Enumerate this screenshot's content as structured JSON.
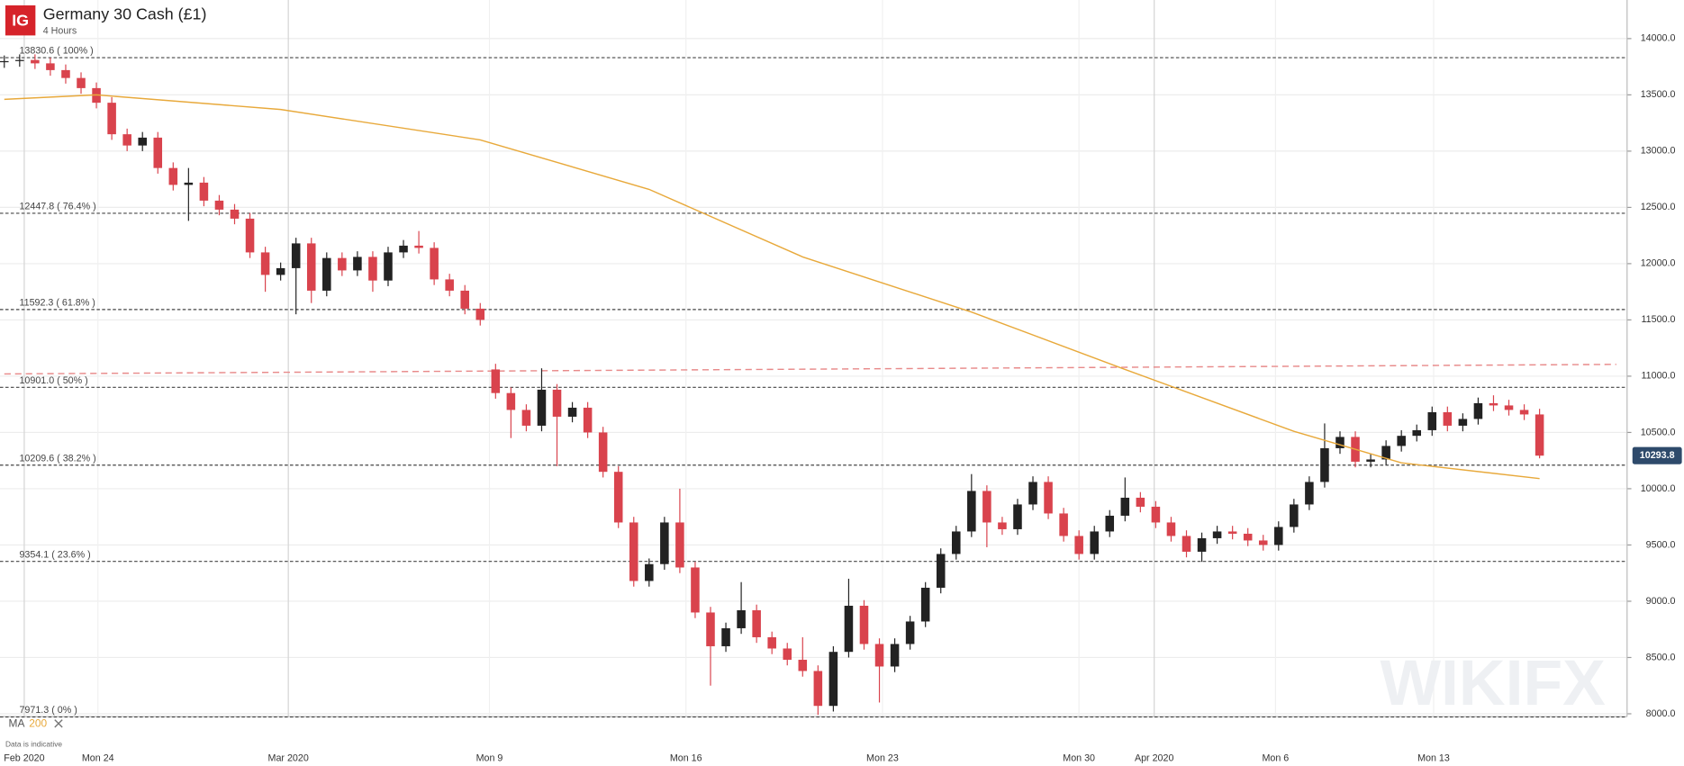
{
  "header": {
    "logo": "IG",
    "title": "Germany 30 Cash (£1)",
    "subtitle": "4 Hours"
  },
  "footer": {
    "note": "Data is indicative",
    "watermark": "WIKIFX"
  },
  "chart_data": {
    "type": "candlestick",
    "up_color": "#222222",
    "down_color": "#d9434d",
    "open": [
      13790,
      13800,
      13810,
      13780,
      13720,
      13650,
      13560,
      13430,
      13150,
      13050,
      13120,
      12850,
      12700,
      12720,
      12560,
      12480,
      12400,
      12100,
      11900,
      11960,
      12180,
      11760,
      12050,
      11940,
      12060,
      11850,
      12100,
      12160,
      12140,
      11860,
      11760,
      11600,
      11060,
      10850,
      10700,
      10560,
      10880,
      10640,
      10720,
      10500,
      10150,
      9700,
      9180,
      9330,
      9700,
      9300,
      8900,
      8600,
      8760,
      8920,
      8680,
      8580,
      8480,
      8380,
      8070,
      8550,
      8960,
      8620,
      8420,
      8620,
      8820,
      9120,
      9420,
      9620,
      9980,
      9700,
      9640,
      9860,
      10060,
      9780,
      9580,
      9420,
      9620,
      9760,
      9920,
      9840,
      9700,
      9580,
      9440,
      9560,
      9620,
      9600,
      9540,
      9500,
      9660,
      9860,
      10060,
      10360,
      10460,
      10240,
      10260,
      10380,
      10470,
      10520,
      10680,
      10560,
      10620,
      10760,
      10740,
      10700,
      10660
    ],
    "high": [
      13850,
      13860,
      13860,
      13830,
      13770,
      13700,
      13610,
      13480,
      13200,
      13170,
      13170,
      12900,
      12850,
      12770,
      12610,
      12530,
      12450,
      12150,
      12010,
      12230,
      12230,
      12100,
      12100,
      12110,
      12110,
      12150,
      12210,
      12290,
      12190,
      11910,
      11810,
      11650,
      11110,
      10900,
      10750,
      11070,
      10930,
      10770,
      10770,
      10550,
      10200,
      9750,
      9380,
      9750,
      10000,
      9350,
      8950,
      8810,
      9170,
      8970,
      8730,
      8630,
      8680,
      8430,
      8600,
      9200,
      9010,
      8670,
      8670,
      8870,
      9170,
      9470,
      9670,
      10130,
      10030,
      9750,
      9910,
      10110,
      10110,
      9830,
      9630,
      9670,
      9810,
      10100,
      9970,
      9890,
      9750,
      9630,
      9610,
      9670,
      9670,
      9650,
      9590,
      9710,
      9910,
      10110,
      10580,
      10510,
      10510,
      10310,
      10430,
      10520,
      10570,
      10730,
      10730,
      10670,
      10810,
      10830,
      10790,
      10750,
      10710
    ],
    "low": [
      13740,
      13750,
      13730,
      13670,
      13600,
      13510,
      13380,
      13100,
      13000,
      13000,
      12800,
      12650,
      12380,
      12510,
      12430,
      12350,
      12050,
      11750,
      11850,
      11550,
      11650,
      11710,
      11890,
      11890,
      11750,
      11800,
      12050,
      12090,
      11810,
      11710,
      11550,
      11450,
      10800,
      10450,
      10510,
      10510,
      10200,
      10590,
      10450,
      10100,
      9650,
      9130,
      9130,
      9280,
      9250,
      8850,
      8250,
      8550,
      8710,
      8630,
      8530,
      8430,
      8330,
      7990,
      8020,
      8500,
      8570,
      8100,
      8370,
      8570,
      8770,
      9070,
      9370,
      9570,
      9480,
      9590,
      9590,
      9810,
      9730,
      9530,
      9370,
      9370,
      9570,
      9710,
      9790,
      9650,
      9530,
      9390,
      9350,
      9510,
      9550,
      9490,
      9450,
      9450,
      9610,
      9810,
      10010,
      10310,
      10190,
      10190,
      10210,
      10330,
      10420,
      10470,
      10510,
      10510,
      10570,
      10690,
      10650,
      10610,
      10270
    ],
    "close": [
      13800,
      13810,
      13780,
      13720,
      13650,
      13560,
      13430,
      13150,
      13050,
      13120,
      12850,
      12700,
      12720,
      12560,
      12480,
      12400,
      12100,
      11900,
      11960,
      12180,
      11760,
      12050,
      11940,
      12060,
      11850,
      12100,
      12160,
      12140,
      11860,
      11760,
      11600,
      11500,
      10850,
      10700,
      10560,
      10880,
      10640,
      10720,
      10500,
      10150,
      9700,
      9180,
      9330,
      9700,
      9300,
      8900,
      8600,
      8760,
      8920,
      8680,
      8580,
      8480,
      8380,
      8070,
      8550,
      8960,
      8620,
      8420,
      8620,
      8820,
      9120,
      9420,
      9620,
      9980,
      9700,
      9640,
      9860,
      10060,
      9780,
      9580,
      9420,
      9620,
      9760,
      9920,
      9840,
      9700,
      9580,
      9440,
      9560,
      9620,
      9600,
      9540,
      9500,
      9660,
      9860,
      10060,
      10360,
      10460,
      10240,
      10260,
      10380,
      10470,
      10520,
      10680,
      10560,
      10620,
      10760,
      10740,
      10700,
      10660,
      10293.8
    ],
    "ma": {
      "label": "MA",
      "period": 200,
      "color": "#e8a93b",
      "x": [
        0,
        6,
        18,
        31,
        42,
        52,
        63,
        73,
        84,
        91,
        100
      ],
      "values": [
        13460,
        13500,
        13370,
        13100,
        12660,
        12060,
        11570,
        11060,
        10510,
        10230,
        10090
      ]
    },
    "trendline": {
      "color": "#e88a8a",
      "x": [
        0,
        105
      ],
      "values": [
        11020,
        11105
      ]
    },
    "fib_levels": [
      {
        "value": 13830.6,
        "label": "13830.6 ( 100% )"
      },
      {
        "value": 12447.8,
        "label": "12447.8 ( 76.4% )"
      },
      {
        "value": 11592.3,
        "label": "11592.3 ( 61.8% )"
      },
      {
        "value": 10901.0,
        "label": "10901.0 ( 50% )"
      },
      {
        "value": 10209.6,
        "label": "10209.6 ( 38.2% )"
      },
      {
        "value": 9354.1,
        "label": "9354.1 ( 23.6% )"
      },
      {
        "value": 7971.3,
        "label": "7971.3 ( 0% )"
      }
    ],
    "ylim": [
      7975,
      14343
    ],
    "xlim": [
      -0.28,
      105.7
    ],
    "yticks": [
      {
        "value": 8000,
        "label": "8000.0"
      },
      {
        "value": 8500,
        "label": "8500.0"
      },
      {
        "value": 9000,
        "label": "9000.0"
      },
      {
        "value": 9500,
        "label": "9500.0"
      },
      {
        "value": 10000,
        "label": "10000.0"
      },
      {
        "value": 10500,
        "label": "10500.0"
      },
      {
        "value": 11000,
        "label": "11000.0"
      },
      {
        "value": 11500,
        "label": "11500.0"
      },
      {
        "value": 12000,
        "label": "12000.0"
      },
      {
        "value": 12500,
        "label": "12500.0"
      },
      {
        "value": 13000,
        "label": "13000.0"
      },
      {
        "value": 13500,
        "label": "13500.0"
      },
      {
        "value": 14000,
        "label": "14000.0"
      }
    ],
    "xticks": [
      {
        "value": 1.3,
        "label": "Feb 2020"
      },
      {
        "value": 6.1,
        "label": "Mon 24"
      },
      {
        "value": 18.5,
        "label": "Mar 2020"
      },
      {
        "value": 31.6,
        "label": "Mon 9"
      },
      {
        "value": 44.4,
        "label": "Mon 16"
      },
      {
        "value": 57.2,
        "label": "Mon 23"
      },
      {
        "value": 70,
        "label": "Mon 30"
      },
      {
        "value": 74.9,
        "label": "Apr 2020"
      },
      {
        "value": 82.8,
        "label": "Mon 6"
      },
      {
        "value": 93.1,
        "label": "Mon 13"
      }
    ],
    "grid": true
  }
}
